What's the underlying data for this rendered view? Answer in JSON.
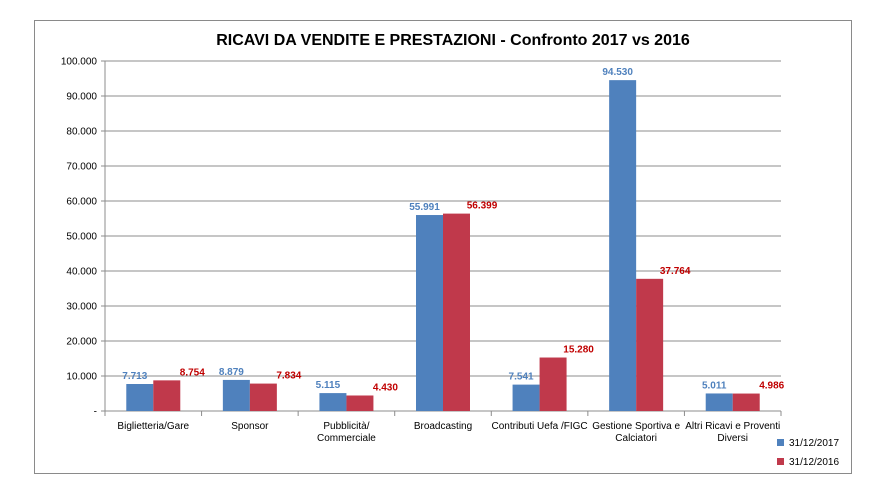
{
  "chart_data": {
    "type": "bar",
    "title": "RICAVI DA VENDITE E PRESTAZIONI - Confronto 2017 vs 2016",
    "xlabel": "",
    "ylabel": "",
    "ylim": [
      0,
      100000
    ],
    "yticks": [
      {
        "value": 0,
        "label": "-"
      },
      {
        "value": 10000,
        "label": "10.000"
      },
      {
        "value": 20000,
        "label": "20.000"
      },
      {
        "value": 30000,
        "label": "30.000"
      },
      {
        "value": 40000,
        "label": "40.000"
      },
      {
        "value": 50000,
        "label": "50.000"
      },
      {
        "value": 60000,
        "label": "60.000"
      },
      {
        "value": 70000,
        "label": "70.000"
      },
      {
        "value": 80000,
        "label": "80.000"
      },
      {
        "value": 90000,
        "label": "90.000"
      },
      {
        "value": 100000,
        "label": "100.000"
      }
    ],
    "categories": [
      [
        "Biglietteria/Gare"
      ],
      [
        "Sponsor"
      ],
      [
        "Pubblicità/",
        "Commerciale"
      ],
      [
        "Broadcasting"
      ],
      [
        "Contributi Uefa /FIGC"
      ],
      [
        "Gestione Sportiva e",
        "Calciatori"
      ],
      [
        "Altri Ricavi e Proventi",
        "Diversi"
      ]
    ],
    "series": [
      {
        "name": "31/12/2017",
        "color": "#4f81bd",
        "label_color": "#4f81bd",
        "values": [
          7713,
          8879,
          5115,
          55991,
          7541,
          94530,
          5011
        ],
        "labels": [
          "7.713",
          "8.879",
          "5.115",
          "55.991",
          "7.541",
          "94.530",
          "5.011"
        ]
      },
      {
        "name": "31/12/2016",
        "color": "#c0394b",
        "label_color": "#c00000",
        "values": [
          8754,
          7834,
          4430,
          56399,
          15280,
          37764,
          4986
        ],
        "labels": [
          "8.754",
          "7.834",
          "4.430",
          "56.399",
          "15.280",
          "37.764",
          "4.986"
        ]
      }
    ],
    "grid": true,
    "legend_position": "bottom-right"
  }
}
